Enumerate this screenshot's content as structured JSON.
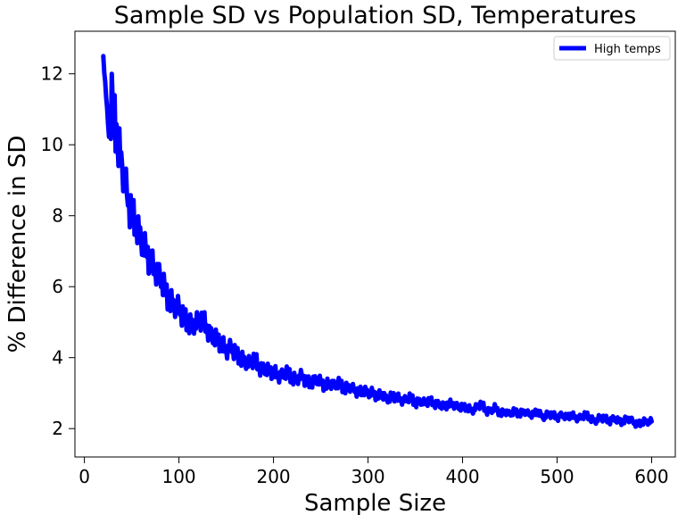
{
  "chart_data": {
    "type": "line",
    "title": "Sample SD vs Population SD, Temperatures",
    "xlabel": "Sample Size",
    "ylabel": "% Difference in SD",
    "xlim": [
      -10,
      625
    ],
    "ylim": [
      1.2,
      13.2
    ],
    "x_ticks": [
      0,
      100,
      200,
      300,
      400,
      500,
      600
    ],
    "y_ticks": [
      2,
      4,
      6,
      8,
      10,
      12
    ],
    "grid": false,
    "legend_position": "upper-right",
    "line_color": "#0000ff",
    "series": [
      {
        "name": "High temps",
        "color": "#0000ff",
        "x": [
          20,
          25,
          30,
          35,
          40,
          45,
          50,
          55,
          60,
          65,
          70,
          75,
          80,
          85,
          90,
          95,
          100,
          105,
          110,
          115,
          120,
          125,
          130,
          135,
          140,
          145,
          150,
          155,
          160,
          165,
          170,
          175,
          180,
          185,
          190,
          195,
          200,
          205,
          210,
          215,
          220,
          225,
          230,
          235,
          240,
          245,
          250,
          255,
          260,
          265,
          270,
          275,
          280,
          285,
          290,
          295,
          300,
          305,
          310,
          315,
          320,
          325,
          330,
          335,
          340,
          345,
          350,
          355,
          360,
          365,
          370,
          375,
          380,
          385,
          390,
          395,
          400,
          405,
          410,
          415,
          420,
          425,
          430,
          435,
          440,
          445,
          450,
          455,
          460,
          465,
          470,
          475,
          480,
          485,
          490,
          495,
          500,
          505,
          510,
          515,
          520,
          525,
          530,
          535,
          540,
          545,
          550,
          555,
          560,
          565,
          570,
          575,
          580,
          585,
          590,
          595,
          600
        ],
        "y": [
          12.5,
          10.6,
          11.2,
          10.1,
          9.4,
          8.6,
          8.0,
          7.8,
          7.3,
          7.0,
          6.7,
          6.5,
          6.3,
          5.9,
          5.6,
          5.5,
          5.4,
          5.1,
          5.0,
          4.9,
          5.0,
          5.1,
          4.8,
          4.6,
          4.5,
          4.4,
          4.2,
          4.3,
          4.1,
          4.0,
          3.9,
          3.8,
          4.0,
          3.7,
          3.7,
          3.6,
          3.6,
          3.5,
          3.5,
          3.6,
          3.4,
          3.4,
          3.5,
          3.3,
          3.3,
          3.4,
          3.3,
          3.2,
          3.3,
          3.2,
          3.3,
          3.1,
          3.2,
          3.1,
          3.0,
          3.1,
          3.0,
          3.0,
          2.9,
          3.0,
          2.8,
          2.9,
          2.9,
          2.8,
          2.8,
          2.9,
          2.7,
          2.8,
          2.7,
          2.8,
          2.7,
          2.7,
          2.6,
          2.7,
          2.7,
          2.6,
          2.6,
          2.6,
          2.5,
          2.6,
          2.7,
          2.5,
          2.5,
          2.6,
          2.4,
          2.5,
          2.4,
          2.5,
          2.4,
          2.5,
          2.4,
          2.4,
          2.5,
          2.3,
          2.4,
          2.4,
          2.3,
          2.4,
          2.3,
          2.4,
          2.3,
          2.3,
          2.4,
          2.3,
          2.2,
          2.3,
          2.3,
          2.2,
          2.3,
          2.2,
          2.2,
          2.3,
          2.2,
          2.1,
          2.2,
          2.2,
          2.2
        ],
        "noise": [
          0.1,
          1.0,
          0.8,
          0.7,
          0.6,
          0.6,
          0.55,
          0.5,
          0.45,
          0.45,
          0.4,
          0.4,
          0.4,
          0.38,
          0.36,
          0.35,
          0.35,
          0.33,
          0.32,
          0.3,
          0.3,
          0.3,
          0.28,
          0.28,
          0.27,
          0.26,
          0.25,
          0.25,
          0.24,
          0.24,
          0.23,
          0.22,
          0.22,
          0.21,
          0.21,
          0.2,
          0.2,
          0.2,
          0.19,
          0.19,
          0.19,
          0.18,
          0.18,
          0.18,
          0.17,
          0.17,
          0.17,
          0.17,
          0.16,
          0.16,
          0.16,
          0.16,
          0.15,
          0.15,
          0.15,
          0.15,
          0.15,
          0.14,
          0.14,
          0.14,
          0.14,
          0.14,
          0.13,
          0.13,
          0.13,
          0.13,
          0.13,
          0.13,
          0.12,
          0.12,
          0.12,
          0.12,
          0.12,
          0.12,
          0.12,
          0.11,
          0.11,
          0.11,
          0.11,
          0.11,
          0.11,
          0.11,
          0.11,
          0.1,
          0.1,
          0.1,
          0.1,
          0.1,
          0.1,
          0.1,
          0.1,
          0.1,
          0.1,
          0.1,
          0.1,
          0.1,
          0.1,
          0.1,
          0.1,
          0.1,
          0.1,
          0.1,
          0.1,
          0.1,
          0.1,
          0.1,
          0.1,
          0.1,
          0.1,
          0.1,
          0.1,
          0.1,
          0.1,
          0.1,
          0.1,
          0.1,
          0.1
        ]
      }
    ]
  }
}
